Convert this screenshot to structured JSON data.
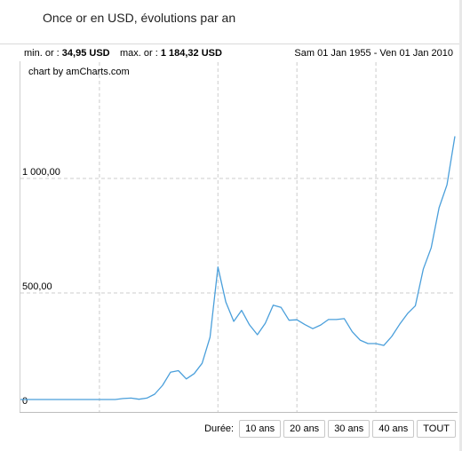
{
  "header": {
    "title": "Once or en USD, évolutions par an"
  },
  "info": {
    "min_label": "min. or : ",
    "min_value": "34,95 USD",
    "max_label": "max. or : ",
    "max_value": "1 184,32 USD",
    "date_range": "Sam 01 Jan 1955 - Ven 01 Jan 2010"
  },
  "credit": "chart by amCharts.com",
  "controls": {
    "label": "Durée:",
    "buttons": [
      "10 ans",
      "20 ans",
      "30 ans",
      "40 ans",
      "TOUT"
    ]
  },
  "colors": {
    "line": "#4a9fdb",
    "grid": "#cccccc"
  },
  "chart_data": {
    "type": "line",
    "title": "Once or en USD, évolutions par an",
    "xlabel": "",
    "ylabel": "",
    "ylim": [
      0,
      1184.32
    ],
    "xlim": [
      1955,
      2010
    ],
    "y_tick_labels": [
      "0",
      "500,00",
      "1 000,00"
    ],
    "y_ticks": [
      0,
      500,
      1000
    ],
    "x_grid": [
      1965,
      1980,
      1990,
      2000
    ],
    "grid": true,
    "legend": "none",
    "series": [
      {
        "x": [
          1955,
          1956,
          1957,
          1958,
          1959,
          1960,
          1961,
          1962,
          1963,
          1964,
          1965,
          1966,
          1967,
          1968,
          1969,
          1970,
          1971,
          1972,
          1973,
          1974,
          1975,
          1976,
          1977,
          1978,
          1979,
          1980,
          1981,
          1982,
          1983,
          1984,
          1985,
          1986,
          1987,
          1988,
          1989,
          1990,
          1991,
          1992,
          1993,
          1994,
          1995,
          1996,
          1997,
          1998,
          1999,
          2000,
          2001,
          2002,
          2003,
          2004,
          2005,
          2006,
          2007,
          2008,
          2009,
          2010
        ],
        "values": [
          35,
          35,
          35,
          35,
          35,
          35,
          35,
          35,
          35,
          35,
          35,
          35,
          35,
          39,
          41,
          36,
          41,
          58,
          97,
          154,
          161,
          125,
          148,
          193,
          307,
          613,
          460,
          376,
          424,
          361,
          318,
          368,
          447,
          437,
          381,
          383,
          362,
          344,
          360,
          384,
          384,
          388,
          331,
          294,
          279,
          279,
          271,
          310,
          363,
          410,
          444,
          604,
          697,
          872,
          972,
          1184
        ]
      }
    ]
  }
}
